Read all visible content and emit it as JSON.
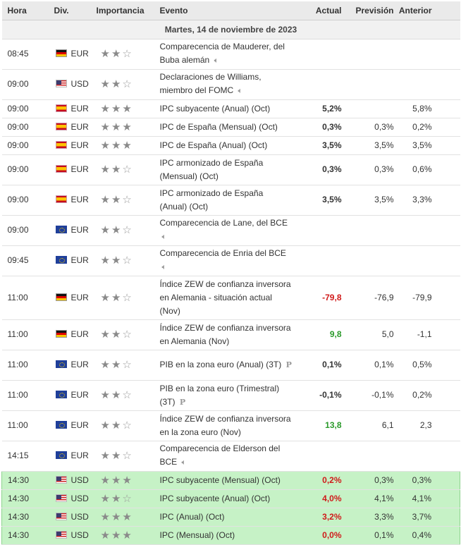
{
  "headers": {
    "time": "Hora",
    "currency": "Div.",
    "importance": "Importancia",
    "event": "Evento",
    "actual": "Actual",
    "forecast": "Previsión",
    "previous": "Anterior"
  },
  "date_label": "Martes, 14 de noviembre de 2023",
  "colors": {
    "negative": "#d01a1a",
    "positive": "#2a9a2a",
    "highlight": "#c6f2c6",
    "star": "#8a8a8a"
  },
  "events": [
    {
      "time": "08:45",
      "flag": "de",
      "currency": "EUR",
      "stars": 2,
      "event": "Comparecencia de Mauderer, del Buba alemán",
      "speech": true,
      "actual": "",
      "actual_class": "",
      "forecast": "",
      "previous": "",
      "row": "h2",
      "highlight": false
    },
    {
      "time": "09:00",
      "flag": "us",
      "currency": "USD",
      "stars": 2,
      "event": "Declaraciones de Williams, miembro del FOMC",
      "speech": true,
      "actual": "",
      "actual_class": "",
      "forecast": "",
      "previous": "",
      "row": "h2",
      "highlight": false
    },
    {
      "time": "09:00",
      "flag": "es",
      "currency": "EUR",
      "stars": 3,
      "event": "IPC subyacente (Anual) (Oct)",
      "actual": "5,2%",
      "actual_class": "",
      "forecast": "",
      "previous": "5,8%",
      "row": "h1",
      "highlight": false
    },
    {
      "time": "09:00",
      "flag": "es",
      "currency": "EUR",
      "stars": 3,
      "event": "IPC de España (Mensual) (Oct)",
      "actual": "0,3%",
      "actual_class": "",
      "forecast": "0,3%",
      "previous": "0,2%",
      "row": "h1",
      "highlight": false
    },
    {
      "time": "09:00",
      "flag": "es",
      "currency": "EUR",
      "stars": 3,
      "event": "IPC de España (Anual) (Oct)",
      "actual": "3,5%",
      "actual_class": "",
      "forecast": "3,5%",
      "previous": "3,5%",
      "row": "h1",
      "highlight": false
    },
    {
      "time": "09:00",
      "flag": "es",
      "currency": "EUR",
      "stars": 2,
      "event": "IPC armonizado de España (Mensual) (Oct)",
      "actual": "0,3%",
      "actual_class": "",
      "forecast": "0,3%",
      "previous": "0,6%",
      "row": "h2",
      "highlight": false
    },
    {
      "time": "09:00",
      "flag": "es",
      "currency": "EUR",
      "stars": 2,
      "event": "IPC armonizado de España (Anual) (Oct)",
      "actual": "3,5%",
      "actual_class": "",
      "forecast": "3,5%",
      "previous": "3,3%",
      "row": "h2",
      "highlight": false
    },
    {
      "time": "09:00",
      "flag": "eu",
      "currency": "EUR",
      "stars": 2,
      "event": "Comparecencia de Lane, del BCE",
      "speech": true,
      "actual": "",
      "actual_class": "",
      "forecast": "",
      "previous": "",
      "row": "h2",
      "highlight": false
    },
    {
      "time": "09:45",
      "flag": "eu",
      "currency": "EUR",
      "stars": 2,
      "event": "Comparecencia de Enria del BCE",
      "speech": true,
      "actual": "",
      "actual_class": "",
      "forecast": "",
      "previous": "",
      "row": "h2",
      "highlight": false
    },
    {
      "time": "11:00",
      "flag": "de",
      "currency": "EUR",
      "stars": 2,
      "event": "Índice ZEW de confianza inversora en Alemania - situación actual (Nov)",
      "actual": "-79,8",
      "actual_class": "neg",
      "forecast": "-76,9",
      "previous": "-79,9",
      "row": "h3",
      "highlight": false
    },
    {
      "time": "11:00",
      "flag": "de",
      "currency": "EUR",
      "stars": 2,
      "event": "Índice ZEW de confianza inversora en Alemania (Nov)",
      "actual": "9,8",
      "actual_class": "pos",
      "forecast": "5,0",
      "previous": "-1,1",
      "row": "h2",
      "highlight": false
    },
    {
      "time": "11:00",
      "flag": "eu",
      "currency": "EUR",
      "stars": 2,
      "event": "PIB en la zona euro (Anual) (3T)",
      "prelim": true,
      "actual": "0,1%",
      "actual_class": "",
      "forecast": "0,1%",
      "previous": "0,5%",
      "row": "h2",
      "highlight": false
    },
    {
      "time": "11:00",
      "flag": "eu",
      "currency": "EUR",
      "stars": 2,
      "event": "PIB en la zona euro (Trimestral) (3T)",
      "prelim": true,
      "actual": "-0,1%",
      "actual_class": "",
      "forecast": "-0,1%",
      "previous": "0,2%",
      "row": "h2",
      "highlight": false
    },
    {
      "time": "11:00",
      "flag": "eu",
      "currency": "EUR",
      "stars": 2,
      "event": "Índice ZEW de confianza inversora en la zona euro (Nov)",
      "actual": "13,8",
      "actual_class": "pos",
      "forecast": "6,1",
      "previous": "2,3",
      "row": "h2",
      "highlight": false
    },
    {
      "time": "14:15",
      "flag": "eu",
      "currency": "EUR",
      "stars": 2,
      "event": "Comparecencia de Elderson del BCE",
      "speech": true,
      "actual": "",
      "actual_class": "",
      "forecast": "",
      "previous": "",
      "row": "h2",
      "highlight": false
    },
    {
      "time": "14:30",
      "flag": "us",
      "currency": "USD",
      "stars": 3,
      "event": "IPC subyacente (Mensual) (Oct)",
      "actual": "0,2%",
      "actual_class": "neg",
      "forecast": "0,3%",
      "previous": "0,3%",
      "row": "h1",
      "highlight": true
    },
    {
      "time": "14:30",
      "flag": "us",
      "currency": "USD",
      "stars": 2,
      "event": "IPC subyacente (Anual) (Oct)",
      "actual": "4,0%",
      "actual_class": "neg",
      "forecast": "4,1%",
      "previous": "4,1%",
      "row": "h1",
      "highlight": true
    },
    {
      "time": "14:30",
      "flag": "us",
      "currency": "USD",
      "stars": 3,
      "event": "IPC (Anual) (Oct)",
      "actual": "3,2%",
      "actual_class": "neg",
      "forecast": "3,3%",
      "previous": "3,7%",
      "row": "h1",
      "highlight": true
    },
    {
      "time": "14:30",
      "flag": "us",
      "currency": "USD",
      "stars": 3,
      "event": "IPC (Mensual) (Oct)",
      "actual": "0,0%",
      "actual_class": "neg",
      "forecast": "0,1%",
      "previous": "0,4%",
      "row": "h1",
      "highlight": true
    }
  ]
}
